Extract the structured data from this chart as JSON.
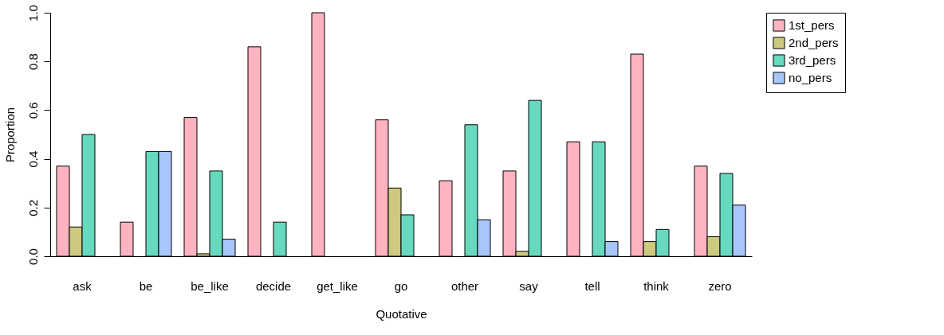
{
  "chart_data": {
    "type": "bar",
    "xlabel": "Quotative",
    "ylabel": "Proportion",
    "categories": [
      "ask",
      "be",
      "be_like",
      "decide",
      "get_like",
      "go",
      "other",
      "say",
      "tell",
      "think",
      "zero"
    ],
    "series": [
      {
        "name": "1st_pers",
        "color": "#ffb3c1",
        "values": [
          0.37,
          0.14,
          0.57,
          0.86,
          1.0,
          0.56,
          0.31,
          0.35,
          0.47,
          0.83,
          0.37
        ]
      },
      {
        "name": "2nd_pers",
        "color": "#cdc97f",
        "values": [
          0.12,
          0,
          0.01,
          0,
          0,
          0.28,
          0,
          0.02,
          0,
          0.06,
          0.08
        ]
      },
      {
        "name": "3rd_pers",
        "color": "#66d9bf",
        "values": [
          0.5,
          0.43,
          0.35,
          0.14,
          0,
          0.17,
          0.54,
          0.64,
          0.47,
          0.11,
          0.34
        ]
      },
      {
        "name": "no_pers",
        "color": "#a9c6fa",
        "values": [
          0,
          0.43,
          0.07,
          0,
          0,
          0,
          0.15,
          0,
          0.06,
          0,
          0.21
        ]
      }
    ],
    "ylim": [
      0,
      1.0
    ],
    "yticks": [
      {
        "value": 0,
        "label": "0.0"
      },
      {
        "value": 0.2,
        "label": "0.2"
      },
      {
        "value": 0.4,
        "label": "0.4"
      },
      {
        "value": 0.6,
        "label": "0.6"
      },
      {
        "value": 0.8,
        "label": "0.8"
      },
      {
        "value": 1.0,
        "label": "1.0"
      }
    ],
    "legend": "right",
    "grid": false
  }
}
